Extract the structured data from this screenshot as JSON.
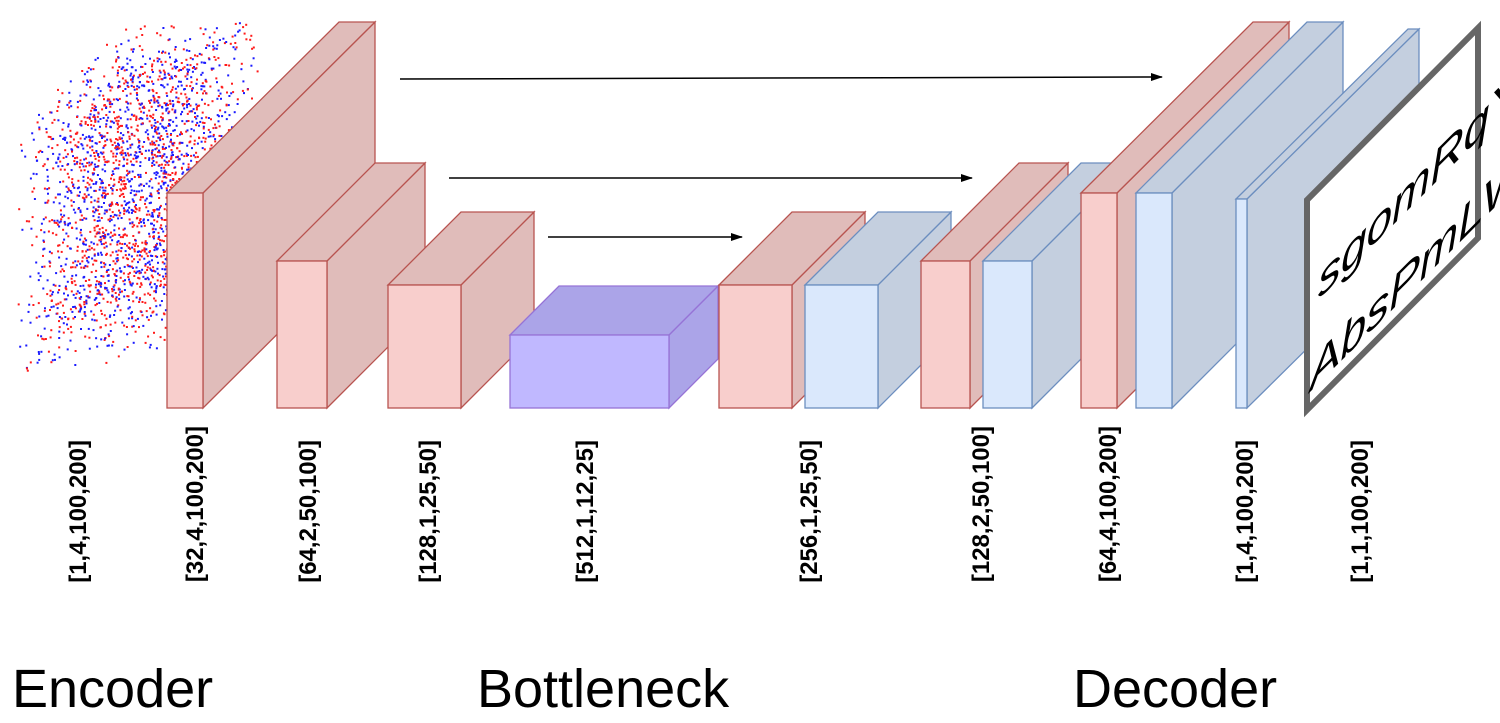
{
  "colors": {
    "encoder_front": "#f8cecc",
    "encoder_side": "#e0bcba",
    "encoder_stroke": "#b85450",
    "bottleneck_front": "#c0b8ff",
    "bottleneck_side": "#aba4e8",
    "bottleneck_stroke": "#9673d6",
    "decoder_front": "#dae8fc",
    "decoder_side": "#c4cfdf",
    "decoder_stroke": "#6c8ebf",
    "point_red": "#ff1a1a",
    "point_blue": "#1a1aff",
    "frame": "#666666"
  },
  "shape_labels": [
    "[1,4,100,200]",
    "[32,4,100,200]",
    "[64,2,50,100]",
    "[128,1,25,50]",
    "[512,1,12,25]",
    "[256,1,25,50]",
    "[128,2,50,100]",
    "[64,4,100,200]",
    "[1,4,100,200]",
    "[1,1,100,200]"
  ],
  "sections": {
    "encoder": "Encoder",
    "bottleneck": "Bottleneck",
    "decoder": "Decoder"
  },
  "output_text": {
    "line1": "sgomRqYXdUllYl",
    "line2": "AbsPmLWEeull"
  }
}
